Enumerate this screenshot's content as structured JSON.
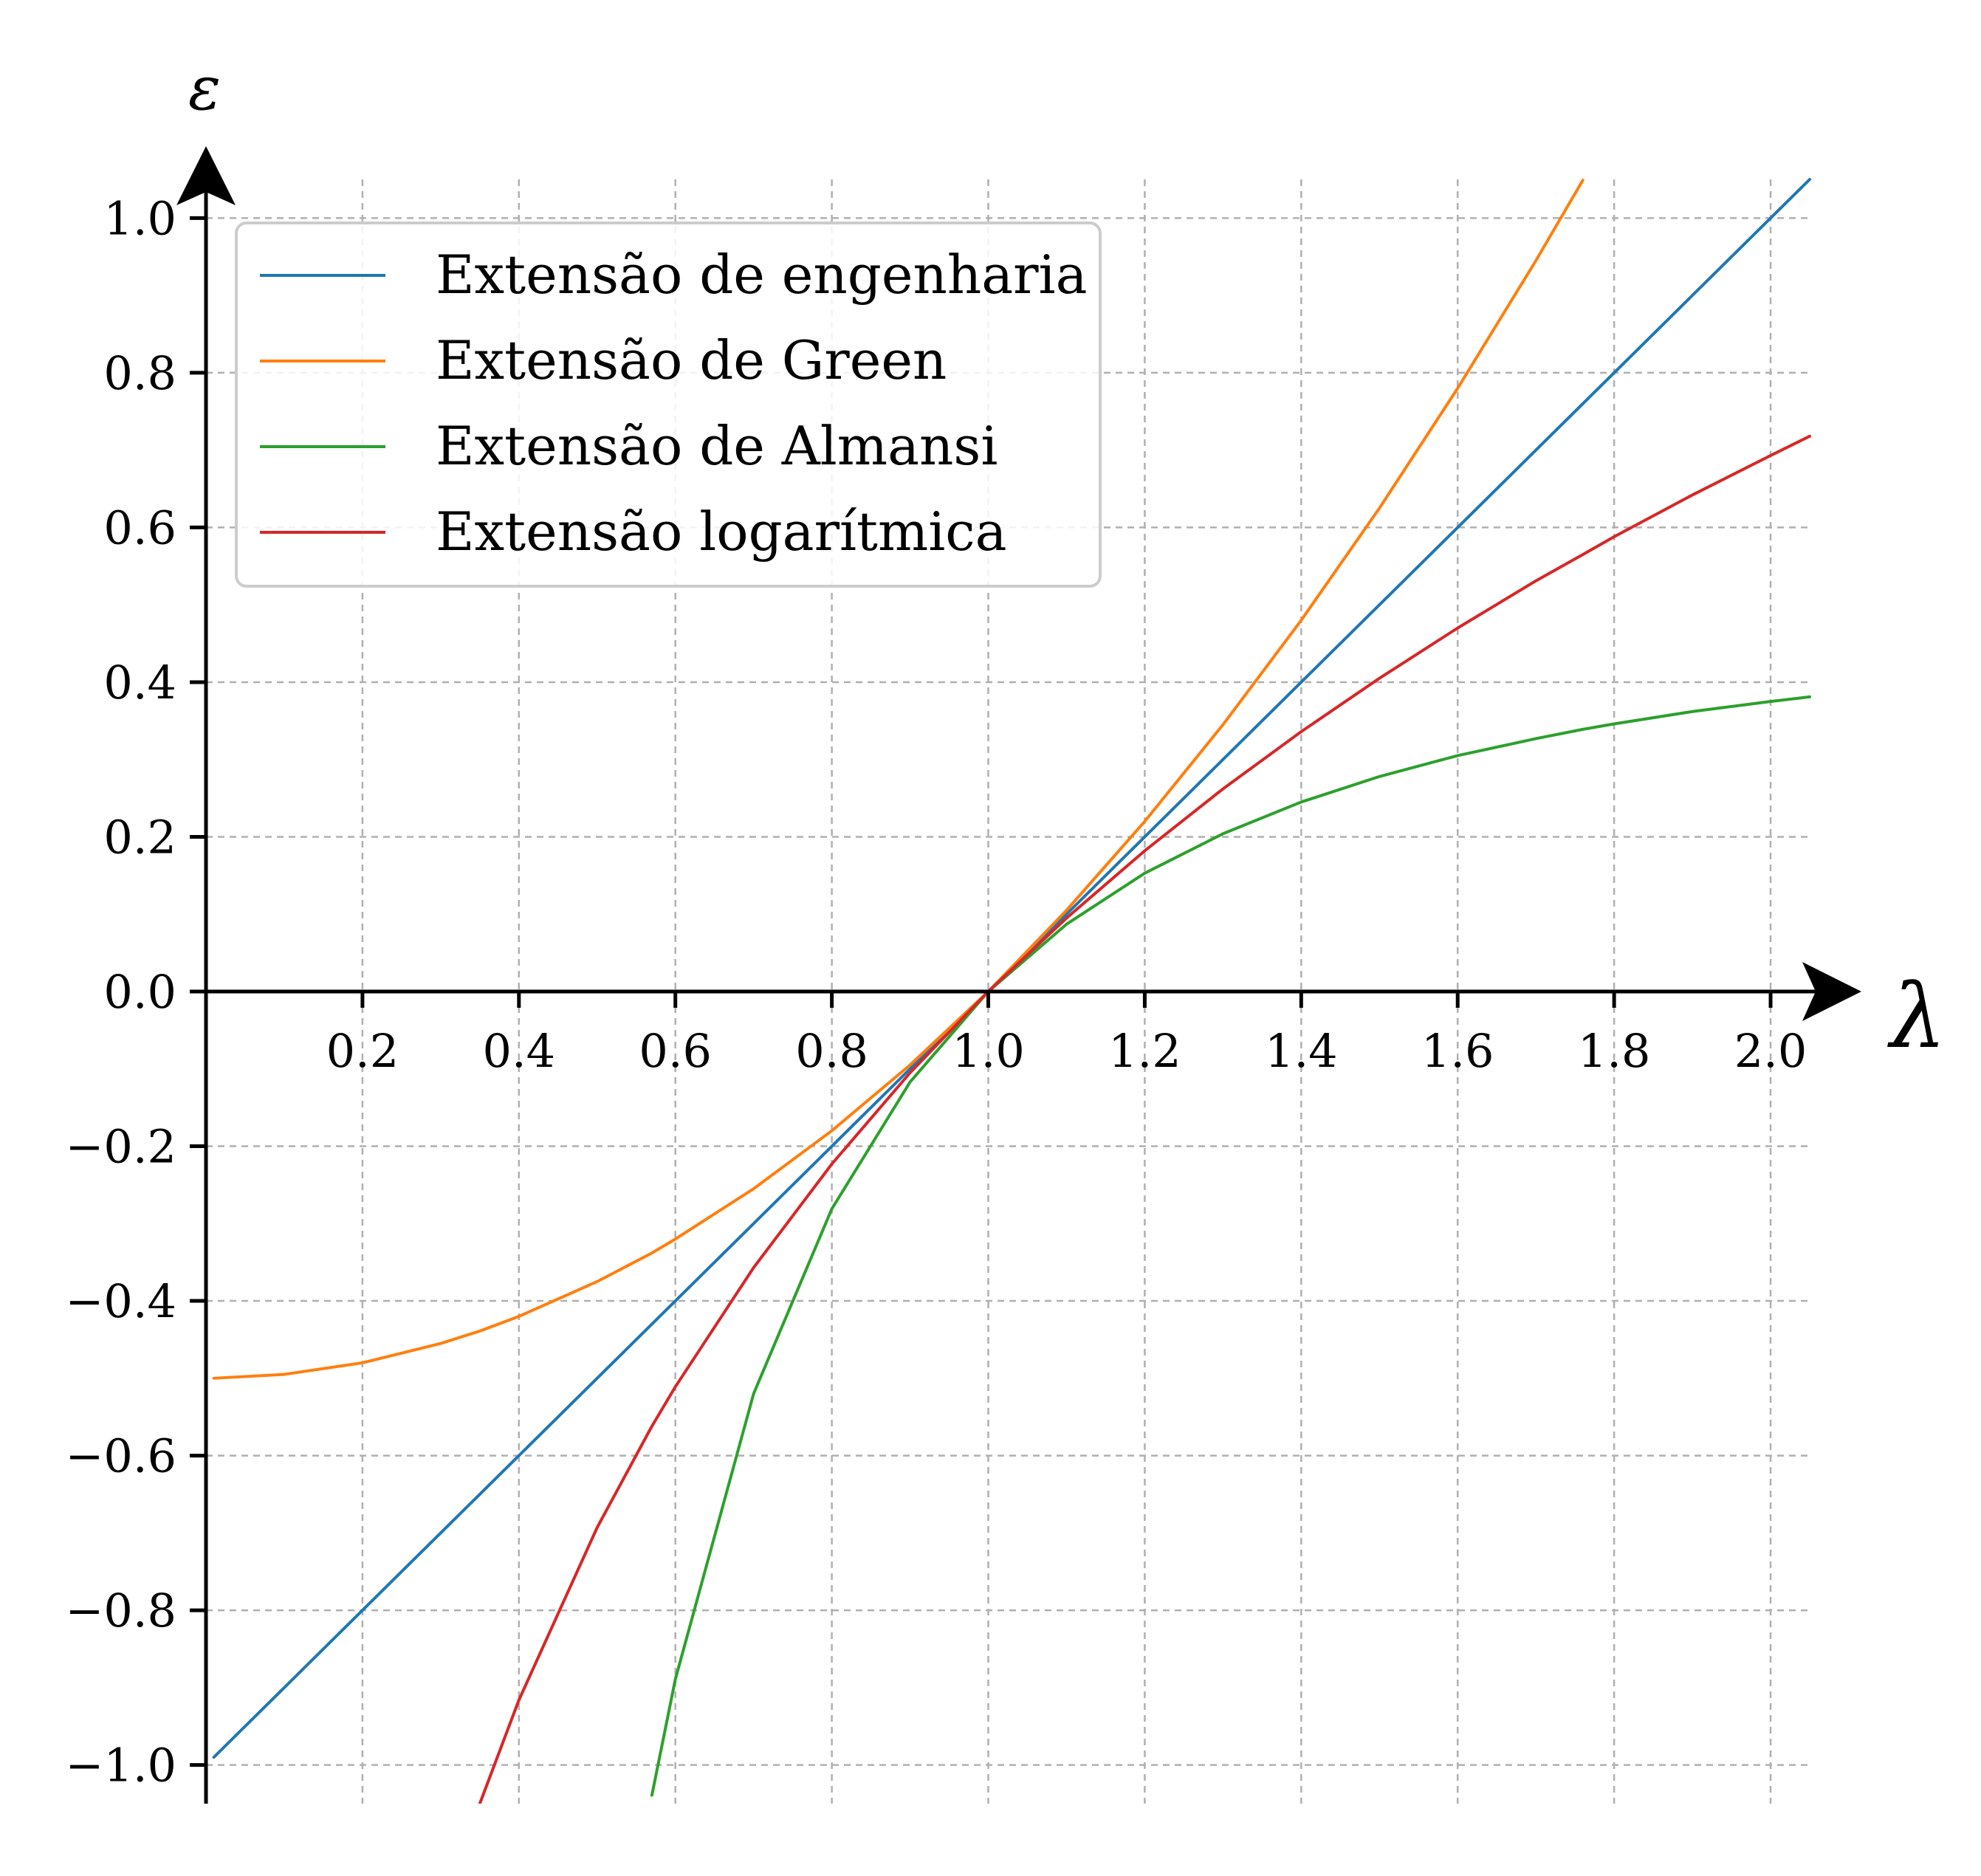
{
  "chart_data": {
    "type": "line",
    "title": "",
    "xlabel": "λ",
    "ylabel": "ε",
    "xlim": [
      0.0,
      2.05
    ],
    "ylim": [
      -1.05,
      1.05
    ],
    "x_ticks": [
      "0.2",
      "0.4",
      "0.6",
      "0.8",
      "1.0",
      "1.2",
      "1.4",
      "1.6",
      "1.8",
      "2.0"
    ],
    "y_ticks": [
      "1.0",
      "0.8",
      "0.6",
      "0.4",
      "0.2",
      "0.0",
      "−0.2",
      "−0.4",
      "−0.6",
      "−0.8",
      "−1.0"
    ],
    "grid": true,
    "legend_position": "top-left",
    "x": [
      0.01,
      0.1,
      0.2,
      0.3,
      0.35,
      0.4,
      0.5,
      0.57,
      0.6,
      0.7,
      0.8,
      0.9,
      1.0,
      1.1,
      1.2,
      1.3,
      1.4,
      1.5,
      1.6,
      1.7,
      1.76,
      1.8,
      1.9,
      2.0,
      2.05
    ],
    "series": [
      {
        "name": "Extensão de engenharia",
        "color": "#1f77b4",
        "values": [
          -0.99,
          -0.9,
          -0.8,
          -0.7,
          -0.65,
          -0.6,
          -0.5,
          -0.43,
          -0.4,
          -0.3,
          -0.2,
          -0.1,
          0.0,
          0.1,
          0.2,
          0.3,
          0.4,
          0.5,
          0.6,
          0.7,
          0.76,
          0.8,
          0.9,
          1.0,
          1.05
        ]
      },
      {
        "name": "Extensão de Green",
        "color": "#ff7f0e",
        "values": [
          -0.5,
          -0.495,
          -0.48,
          -0.455,
          -0.439,
          -0.42,
          -0.375,
          -0.338,
          -0.32,
          -0.255,
          -0.18,
          -0.095,
          0.0,
          0.105,
          0.22,
          0.345,
          0.48,
          0.625,
          0.78,
          0.945,
          1.049,
          null,
          null,
          null,
          null
        ]
      },
      {
        "name": "Extensão de Almansi",
        "color": "#2ca02c",
        "values": [
          null,
          null,
          null,
          null,
          null,
          null,
          null,
          -1.039,
          -0.889,
          -0.52,
          -0.281,
          -0.117,
          0.0,
          0.087,
          0.153,
          0.204,
          0.245,
          0.278,
          0.305,
          0.327,
          0.339,
          0.346,
          0.362,
          0.375,
          0.381
        ]
      },
      {
        "name": "Extensão logarítmica",
        "color": "#d62728",
        "values": [
          null,
          null,
          null,
          null,
          -1.05,
          -0.916,
          -0.693,
          -0.562,
          -0.511,
          -0.357,
          -0.223,
          -0.105,
          0.0,
          0.095,
          0.182,
          0.262,
          0.336,
          0.405,
          0.47,
          0.531,
          0.565,
          0.588,
          0.642,
          0.693,
          0.718
        ]
      }
    ]
  }
}
